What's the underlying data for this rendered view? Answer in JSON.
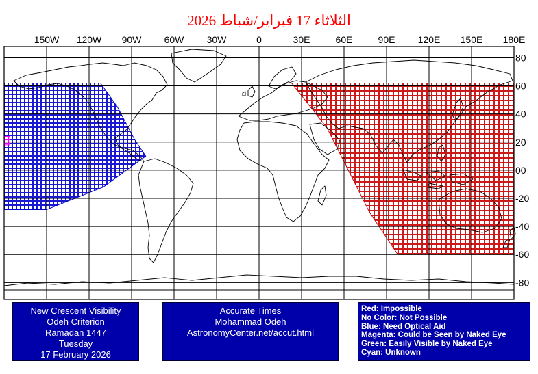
{
  "title": "الثلاثاء 17 فبراير/شباط 2026",
  "map": {
    "lon_labels": [
      "150W",
      "120W",
      "90W",
      "60W",
      "30W",
      "0",
      "30E",
      "60E",
      "90E",
      "120E",
      "150E",
      "180E"
    ],
    "lat_labels": [
      "80",
      "60",
      "40",
      "20",
      "00",
      "-20",
      "-40",
      "-60",
      "-80"
    ],
    "lon_range": [
      -180,
      180
    ],
    "lat_range": [
      -90,
      90
    ],
    "grid_step_deg": 30,
    "lat_grid_step_deg": 20,
    "zones": [
      {
        "name": "Red: Impossible",
        "color": "#c80000",
        "lon_min": 18,
        "lon_max": 180,
        "lat_top": 62,
        "lat_bottom": -60
      },
      {
        "name": "Blue: Need Optical Aid",
        "color": "#0000cc",
        "lon_min": -180,
        "lon_max": -80,
        "lat_top": 62,
        "lat_bottom": -28
      },
      {
        "name": "Magenta: Could be Seen by Naked Eye",
        "color": "#ff00ff",
        "lon_min": -180,
        "lon_max": -176,
        "lat_top": 24,
        "lat_bottom": 18
      }
    ]
  },
  "box1": {
    "line1": "New Crescent Visibility",
    "line2": "Odeh Criterion",
    "line3": "Ramadan 1447",
    "line4": "Tuesday",
    "line5": "17 February 2026"
  },
  "box2": {
    "line1": "Accurate Times",
    "line2": "Mohammad Odeh",
    "line3": "AstronomyCenter.net/accut.html"
  },
  "legend": {
    "red": "Red: Impossible",
    "none": "No Color: Not Possible",
    "blue": "Blue: Need Optical Aid",
    "magenta": "Magenta: Could be Seen by Naked Eye",
    "green": "Green: Easily Visible by Naked Eye",
    "cyan": "Cyan: Unknown"
  }
}
